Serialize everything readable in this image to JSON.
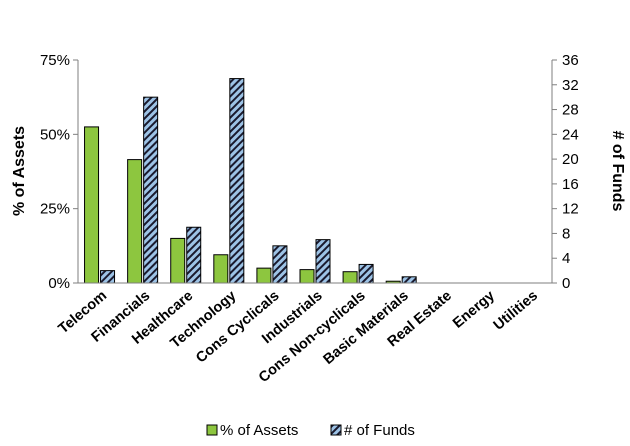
{
  "chart_data": {
    "type": "bar",
    "categories": [
      "Telecom",
      "Financials",
      "Healthcare",
      "Technology",
      "Cons Cyclicals",
      "Industrials",
      "Cons Non-cyclicals",
      "Basic Materials",
      "Real Estate",
      "Energy",
      "Utilities"
    ],
    "series": [
      {
        "name": "% of Assets",
        "axis": "left",
        "color": "#8dc63f",
        "values": [
          52.5,
          41.5,
          15,
          9.5,
          5,
          4.5,
          3.8,
          0.6,
          0,
          0,
          0
        ]
      },
      {
        "name": "# of Funds",
        "axis": "right",
        "color": "#9dc3e6",
        "pattern": "diagonal-stripes",
        "values": [
          2,
          30,
          9,
          33,
          6,
          7,
          3,
          1,
          0,
          0,
          0
        ]
      }
    ],
    "ylabel": "% of Assets",
    "y2label": "# of Funds",
    "ylim": [
      0,
      75
    ],
    "y2lim": [
      0,
      36
    ],
    "yticks": [
      "0%",
      "25%",
      "50%",
      "75%"
    ],
    "y2ticks": [
      "0",
      "4",
      "8",
      "12",
      "16",
      "20",
      "24",
      "28",
      "32",
      "36"
    ],
    "grid": false,
    "legend_position": "bottom"
  }
}
